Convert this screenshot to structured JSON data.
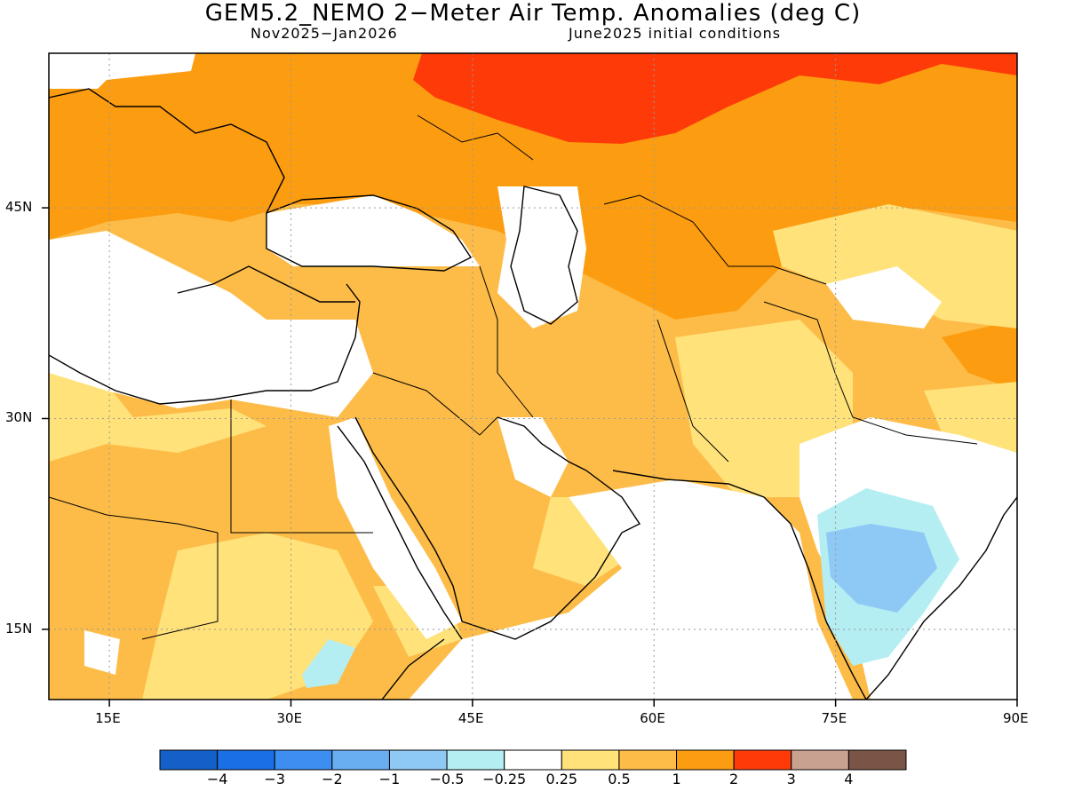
{
  "title": "GEM5.2_NEMO 2−Meter Air Temp. Anomalies (deg C)",
  "subtitle_left": "Nov2025−Jan2026",
  "subtitle_right": "June2025 initial conditions",
  "axes": {
    "lat_labels": [
      "45N",
      "30N",
      "15N"
    ],
    "lat_values": [
      45,
      30,
      15
    ],
    "lon_labels": [
      "15E",
      "30E",
      "45E",
      "60E",
      "75E",
      "90E"
    ],
    "lon_values": [
      15,
      30,
      45,
      60,
      75,
      90
    ],
    "lon_range": [
      10,
      90
    ],
    "lat_range": [
      10,
      56
    ],
    "grid": "dotted"
  },
  "colorbar": {
    "labels": [
      "−4",
      "−3",
      "−2",
      "−1",
      "−0.5",
      "−0.25",
      "0.25",
      "0.5",
      "1",
      "2",
      "3",
      "4"
    ],
    "colors": [
      "#1560c8",
      "#1a6fe6",
      "#3d8ef0",
      "#6aaef2",
      "#8ec8f5",
      "#b4eef2",
      "#ffffff",
      "#ffe27a",
      "#fdbc48",
      "#fc9c10",
      "#fe3b08",
      "#c9a190",
      "#7b5448"
    ]
  }
}
